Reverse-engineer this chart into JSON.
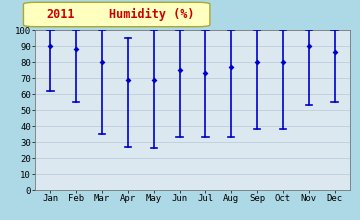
{
  "title_year": "2011",
  "title_metric": "Humidity (%)",
  "months": [
    "Jan",
    "Feb",
    "Mar",
    "Apr",
    "May",
    "Jun",
    "Jul",
    "Aug",
    "Sep",
    "Oct",
    "Nov",
    "Dec"
  ],
  "mean": [
    90,
    88,
    80,
    69,
    69,
    75,
    73,
    77,
    80,
    80,
    90,
    86
  ],
  "max": [
    100,
    100,
    100,
    95,
    100,
    100,
    100,
    100,
    100,
    100,
    100,
    100
  ],
  "min": [
    62,
    55,
    35,
    27,
    26,
    33,
    33,
    33,
    38,
    38,
    53,
    55
  ],
  "ylim": [
    0,
    100
  ],
  "yticks": [
    0,
    10,
    20,
    30,
    40,
    50,
    60,
    70,
    80,
    90,
    100
  ],
  "line_color": "#0000cc",
  "marker_color": "#0000cc",
  "bg_color": "#add8e6",
  "plot_bg": "#dce8f0",
  "title_bg": "#ffffc0",
  "title_color": "#cc0000",
  "grid_color": "#b8c8d8",
  "axis_fontsize": 6.5,
  "title_fontsize": 8.5
}
